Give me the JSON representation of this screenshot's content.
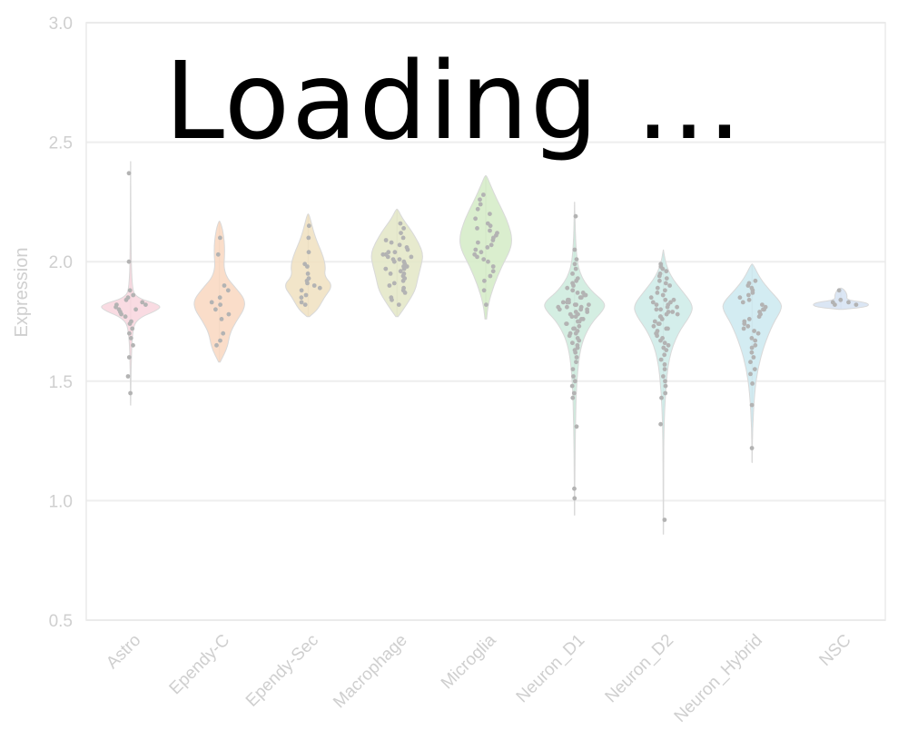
{
  "overlay": {
    "loading_text": "Loading ..."
  },
  "chart_data": {
    "type": "violin",
    "ylabel": "Expression",
    "xlabel": "",
    "ylim": [
      0.5,
      3.0
    ],
    "yticks": [
      "0.5",
      "1.0",
      "1.5",
      "2.0",
      "2.5",
      "3.0"
    ],
    "grid": true,
    "categories": [
      "Astro",
      "Ependy-C",
      "Ependy-Sec",
      "Macrophage",
      "Microglia",
      "Neuron_D1",
      "Neuron_D2",
      "Neuron_Hybrid",
      "NSC"
    ],
    "colors": [
      "#f8d5dd",
      "#f9d7bf",
      "#f0e1bf",
      "#e3e6c6",
      "#d3ebc6",
      "#cdebdd",
      "#cdebe7",
      "#cbe9f0",
      "#d5e2f2"
    ],
    "point_color": "#b3b3b3",
    "violins": [
      {
        "name": "Astro",
        "min": 1.4,
        "max": 2.42,
        "median": 1.8,
        "profile": [
          [
            1.4,
            0.002
          ],
          [
            1.55,
            0.01
          ],
          [
            1.7,
            0.04
          ],
          [
            1.76,
            0.14
          ],
          [
            1.8,
            0.72
          ],
          [
            1.82,
            0.74
          ],
          [
            1.85,
            0.12
          ],
          [
            1.9,
            0.03
          ],
          [
            2.1,
            0.008
          ],
          [
            2.42,
            0.002
          ]
        ],
        "points": [
          1.45,
          1.52,
          1.6,
          1.65,
          1.68,
          1.7,
          1.72,
          1.74,
          1.75,
          1.77,
          1.78,
          1.79,
          1.8,
          1.8,
          1.81,
          1.82,
          1.82,
          1.83,
          1.84,
          1.85,
          1.86,
          1.88,
          2.0,
          2.37
        ]
      },
      {
        "name": "Ependy-C",
        "min": 1.58,
        "max": 2.17,
        "median": 1.82,
        "profile": [
          [
            1.58,
            0.02
          ],
          [
            1.64,
            0.2
          ],
          [
            1.7,
            0.26
          ],
          [
            1.75,
            0.42
          ],
          [
            1.8,
            0.62
          ],
          [
            1.84,
            0.64
          ],
          [
            1.88,
            0.46
          ],
          [
            1.95,
            0.1
          ],
          [
            2.05,
            0.14
          ],
          [
            2.12,
            0.1
          ],
          [
            2.17,
            0.02
          ]
        ],
        "points": [
          1.65,
          1.67,
          1.7,
          1.76,
          1.78,
          1.8,
          1.82,
          1.83,
          1.85,
          1.88,
          1.9,
          2.03,
          2.1
        ]
      },
      {
        "name": "Ependy-Sec",
        "min": 1.77,
        "max": 2.2,
        "median": 1.9,
        "profile": [
          [
            1.77,
            0.03
          ],
          [
            1.8,
            0.24
          ],
          [
            1.85,
            0.4
          ],
          [
            1.9,
            0.62
          ],
          [
            1.94,
            0.4
          ],
          [
            1.98,
            0.44
          ],
          [
            2.03,
            0.36
          ],
          [
            2.1,
            0.18
          ],
          [
            2.16,
            0.08
          ],
          [
            2.2,
            0.02
          ]
        ],
        "points": [
          1.82,
          1.83,
          1.85,
          1.86,
          1.88,
          1.89,
          1.9,
          1.91,
          1.92,
          1.93,
          1.95,
          1.98,
          1.99,
          2.04,
          2.1,
          2.15
        ]
      },
      {
        "name": "Macrophage",
        "min": 1.77,
        "max": 2.22,
        "median": 1.98,
        "profile": [
          [
            1.77,
            0.03
          ],
          [
            1.82,
            0.24
          ],
          [
            1.88,
            0.46
          ],
          [
            1.93,
            0.52
          ],
          [
            1.98,
            0.6
          ],
          [
            2.03,
            0.66
          ],
          [
            2.08,
            0.54
          ],
          [
            2.13,
            0.36
          ],
          [
            2.18,
            0.14
          ],
          [
            2.22,
            0.02
          ]
        ],
        "points": [
          1.82,
          1.84,
          1.85,
          1.87,
          1.88,
          1.89,
          1.9,
          1.91,
          1.92,
          1.93,
          1.94,
          1.95,
          1.95,
          1.96,
          1.97,
          1.97,
          1.98,
          1.98,
          1.99,
          2.0,
          2.0,
          2.01,
          2.01,
          2.02,
          2.02,
          2.03,
          2.03,
          2.04,
          2.04,
          2.05,
          2.06,
          2.07,
          2.08,
          2.09,
          2.1,
          2.12,
          2.14,
          2.16
        ]
      },
      {
        "name": "Microglia",
        "min": 1.76,
        "max": 2.36,
        "median": 2.08,
        "profile": [
          [
            1.76,
            0.02
          ],
          [
            1.82,
            0.06
          ],
          [
            1.9,
            0.2
          ],
          [
            1.98,
            0.4
          ],
          [
            2.05,
            0.62
          ],
          [
            2.1,
            0.66
          ],
          [
            2.15,
            0.58
          ],
          [
            2.2,
            0.46
          ],
          [
            2.26,
            0.28
          ],
          [
            2.32,
            0.12
          ],
          [
            2.36,
            0.02
          ]
        ],
        "points": [
          1.82,
          1.88,
          1.92,
          1.94,
          1.96,
          1.98,
          2.0,
          2.01,
          2.02,
          2.03,
          2.04,
          2.05,
          2.06,
          2.07,
          2.08,
          2.09,
          2.1,
          2.11,
          2.12,
          2.13,
          2.14,
          2.15,
          2.16,
          2.18,
          2.2,
          2.22,
          2.24,
          2.26,
          2.28
        ]
      },
      {
        "name": "Neuron_D1",
        "min": 0.94,
        "max": 2.25,
        "median": 1.81,
        "profile": [
          [
            0.94,
            0.003
          ],
          [
            1.1,
            0.008
          ],
          [
            1.3,
            0.02
          ],
          [
            1.5,
            0.05
          ],
          [
            1.65,
            0.15
          ],
          [
            1.74,
            0.4
          ],
          [
            1.8,
            0.74
          ],
          [
            1.83,
            0.76
          ],
          [
            1.88,
            0.4
          ],
          [
            1.95,
            0.12
          ],
          [
            2.05,
            0.03
          ],
          [
            2.25,
            0.003
          ]
        ],
        "points": [
          1.01,
          1.05,
          1.31,
          1.43,
          1.45,
          1.48,
          1.5,
          1.52,
          1.55,
          1.58,
          1.6,
          1.62,
          1.63,
          1.64,
          1.65,
          1.66,
          1.67,
          1.68,
          1.69,
          1.7,
          1.7,
          1.71,
          1.72,
          1.72,
          1.73,
          1.74,
          1.74,
          1.75,
          1.75,
          1.76,
          1.76,
          1.77,
          1.77,
          1.78,
          1.78,
          1.79,
          1.79,
          1.8,
          1.8,
          1.8,
          1.81,
          1.81,
          1.81,
          1.82,
          1.82,
          1.82,
          1.83,
          1.83,
          1.83,
          1.84,
          1.84,
          1.85,
          1.85,
          1.86,
          1.86,
          1.87,
          1.87,
          1.88,
          1.89,
          1.9,
          1.91,
          1.92,
          1.93,
          1.95,
          1.97,
          1.99,
          2.01,
          2.05,
          2.19
        ]
      },
      {
        "name": "Neuron_D2",
        "min": 0.86,
        "max": 2.05,
        "median": 1.8,
        "profile": [
          [
            0.86,
            0.003
          ],
          [
            1.1,
            0.006
          ],
          [
            1.3,
            0.015
          ],
          [
            1.45,
            0.05
          ],
          [
            1.6,
            0.14
          ],
          [
            1.7,
            0.36
          ],
          [
            1.78,
            0.7
          ],
          [
            1.82,
            0.74
          ],
          [
            1.88,
            0.46
          ],
          [
            1.94,
            0.18
          ],
          [
            2.0,
            0.05
          ],
          [
            2.05,
            0.003
          ]
        ],
        "points": [
          0.92,
          1.32,
          1.43,
          1.45,
          1.48,
          1.5,
          1.52,
          1.55,
          1.57,
          1.59,
          1.61,
          1.63,
          1.64,
          1.65,
          1.66,
          1.67,
          1.68,
          1.69,
          1.7,
          1.7,
          1.71,
          1.72,
          1.72,
          1.73,
          1.74,
          1.74,
          1.75,
          1.76,
          1.76,
          1.77,
          1.77,
          1.78,
          1.78,
          1.79,
          1.79,
          1.8,
          1.8,
          1.81,
          1.81,
          1.82,
          1.82,
          1.83,
          1.83,
          1.84,
          1.84,
          1.85,
          1.86,
          1.87,
          1.88,
          1.89,
          1.9,
          1.91,
          1.92,
          1.93,
          1.94,
          1.95,
          1.96,
          1.97,
          1.98,
          1.99
        ]
      },
      {
        "name": "Neuron_Hybrid",
        "min": 1.16,
        "max": 1.99,
        "median": 1.8,
        "profile": [
          [
            1.16,
            0.003
          ],
          [
            1.3,
            0.01
          ],
          [
            1.45,
            0.06
          ],
          [
            1.55,
            0.14
          ],
          [
            1.65,
            0.3
          ],
          [
            1.74,
            0.52
          ],
          [
            1.8,
            0.74
          ],
          [
            1.83,
            0.72
          ],
          [
            1.88,
            0.44
          ],
          [
            1.93,
            0.2
          ],
          [
            1.99,
            0.02
          ]
        ],
        "points": [
          1.22,
          1.4,
          1.49,
          1.53,
          1.55,
          1.58,
          1.6,
          1.62,
          1.64,
          1.65,
          1.67,
          1.68,
          1.7,
          1.71,
          1.72,
          1.73,
          1.74,
          1.75,
          1.76,
          1.77,
          1.78,
          1.79,
          1.8,
          1.8,
          1.81,
          1.82,
          1.83,
          1.84,
          1.85,
          1.86,
          1.87,
          1.88,
          1.89,
          1.9,
          1.91,
          1.92
        ]
      },
      {
        "name": "NSC",
        "min": 1.8,
        "max": 1.89,
        "median": 1.82,
        "profile": [
          [
            1.8,
            0.05
          ],
          [
            1.81,
            0.6
          ],
          [
            1.82,
            0.72
          ],
          [
            1.83,
            0.6
          ],
          [
            1.84,
            0.14
          ],
          [
            1.86,
            0.16
          ],
          [
            1.88,
            0.1
          ],
          [
            1.89,
            0.02
          ]
        ],
        "points": [
          1.82,
          1.82,
          1.83,
          1.83,
          1.84,
          1.88
        ]
      }
    ]
  }
}
